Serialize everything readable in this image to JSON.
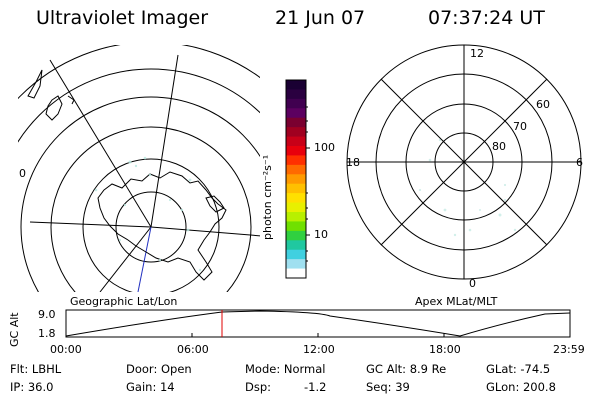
{
  "header": {
    "instrument": "Ultraviolet Imager",
    "date": "21 Jun 07",
    "time": "07:37:24 UT"
  },
  "colorbar": {
    "unit": "photon cm⁻²s⁻¹",
    "tick_labels": [
      "100",
      "10"
    ],
    "scale": "log",
    "colors": [
      "#1a0033",
      "#2a0040",
      "#400050",
      "#5c0060",
      "#7a0030",
      "#a00020",
      "#c80018",
      "#e8000c",
      "#ff3000",
      "#ff6a00",
      "#ff9a00",
      "#ffc000",
      "#ffe000",
      "#e8f000",
      "#b8f000",
      "#70e000",
      "#30d040",
      "#20c8a0",
      "#40d0e0",
      "#a0e0f0",
      "#ffffff"
    ]
  },
  "left_map": {
    "label": "Geographic Lat/Lon",
    "edge_tick": "0"
  },
  "right_map": {
    "label": "Apex MLat/MLT",
    "lat_labels": [
      "60",
      "70",
      "80"
    ],
    "mlt_labels": {
      "top": "12",
      "left": "18",
      "right": "6",
      "bottom": "0"
    }
  },
  "altitude_plot": {
    "ylabel": "GC Alt",
    "y_ticks": [
      "9.0",
      "1.8"
    ],
    "x_ticks": [
      "00:00",
      "06:00",
      "12:00",
      "18:00",
      "23:59"
    ],
    "marker_color": "#e00000"
  },
  "info": {
    "filter": "Flt: LBHL",
    "door": "Door: Open",
    "mode": "Mode: Normal",
    "gc_alt": "GC Alt: 8.9 Re",
    "glat": "GLat: -74.5",
    "ip": "IP: 36.0",
    "gain": "Gain: 14",
    "dsp_label": "Dsp:",
    "dsp_value": "-1.2",
    "seq": "Seq: 39",
    "glon": "GLon: 200.8"
  }
}
